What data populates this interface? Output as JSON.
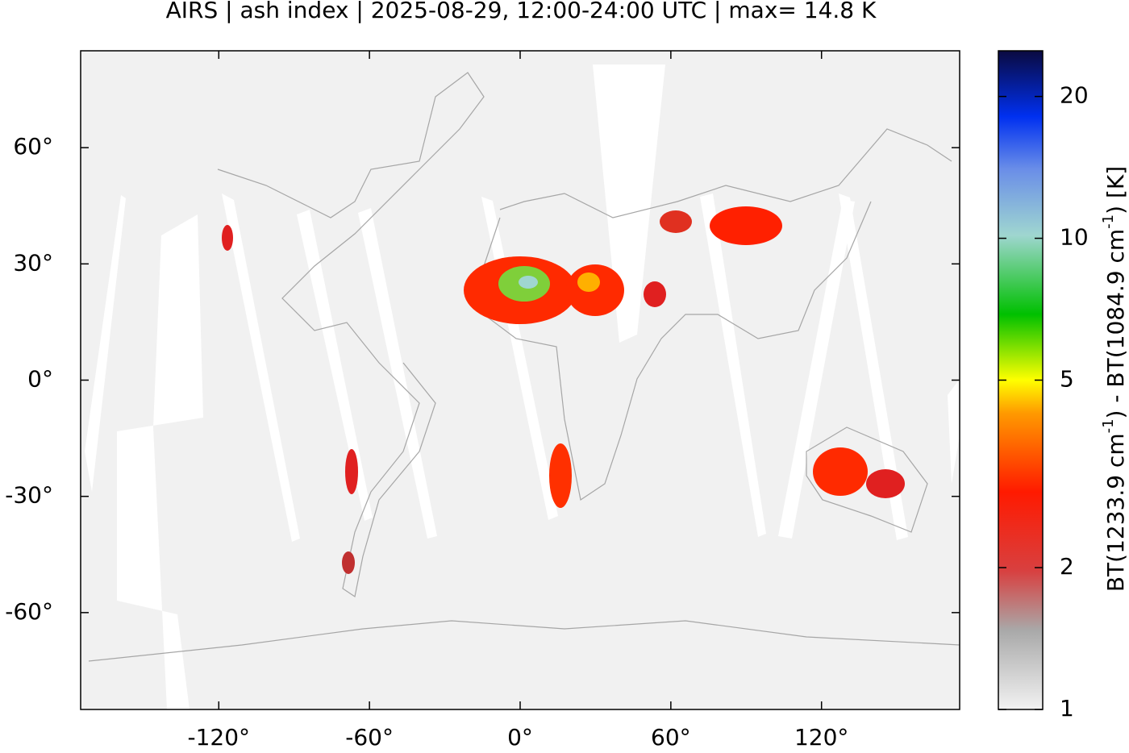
{
  "chart_data": {
    "type": "map",
    "title": "AIRS | ash index | 2025-08-29, 12:00-24:00 UTC | max= 14.8 K",
    "xlim": [
      -175,
      175
    ],
    "ylim": [
      -85,
      85
    ],
    "xticks": [
      {
        "value": -120,
        "label": "-120°"
      },
      {
        "value": -60,
        "label": "-60°"
      },
      {
        "value": 0,
        "label": "0°"
      },
      {
        "value": 60,
        "label": "60°"
      },
      {
        "value": 120,
        "label": "120°"
      }
    ],
    "yticks": [
      {
        "value": 60,
        "label": "60°"
      },
      {
        "value": 30,
        "label": "30°"
      },
      {
        "value": 0,
        "label": "0°"
      },
      {
        "value": -30,
        "label": "-30°"
      },
      {
        "value": -60,
        "label": "-60°"
      }
    ],
    "colorbar": {
      "clim": [
        1,
        25
      ],
      "log": true,
      "ticks": [
        1,
        2,
        5,
        10,
        20
      ],
      "label_parts": [
        "BT(1233.9 cm",
        "-1",
        ") - BT(1084.9 cm",
        "-1",
        ") [K]"
      ]
    }
  }
}
